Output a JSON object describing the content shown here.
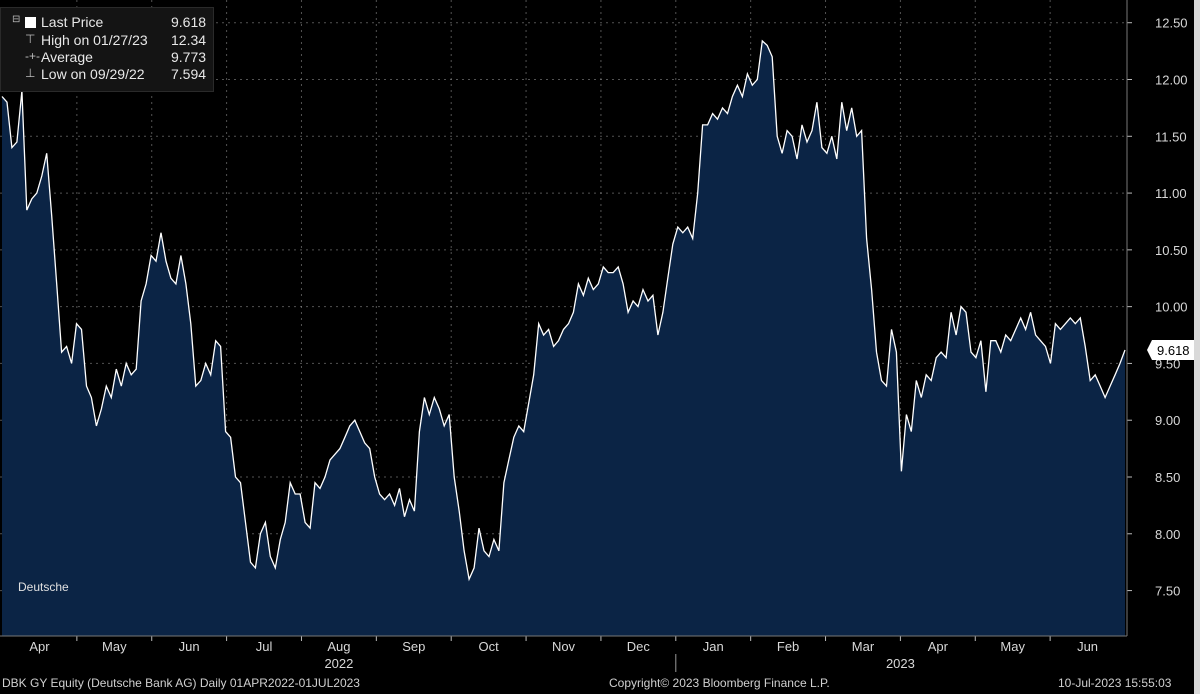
{
  "legend": {
    "rows": [
      {
        "label": "Last Price",
        "value": "9.618"
      },
      {
        "label": "High on 01/27/23",
        "value": "12.34"
      },
      {
        "label": "Average",
        "value": "9.773"
      },
      {
        "label": "Low on 09/29/22",
        "value": "7.594"
      }
    ]
  },
  "watermark": "Deutsche",
  "last_price_tag": "9.618",
  "footer": {
    "left": "DBK GY Equity (Deutsche Bank AG)  Daily 01APR2022-01JUL2023",
    "center": "Copyright© 2023 Bloomberg Finance L.P.",
    "right": "10-Jul-2023 15:55:03"
  },
  "colors": {
    "background": "#000000",
    "area_fill": "#0b2445",
    "line": "#ffffff"
  },
  "chart_data": {
    "type": "area",
    "series": [
      {
        "name": "Last Price",
        "values": [
          11.85,
          11.8,
          11.4,
          11.45,
          11.9,
          10.85,
          10.95,
          11.0,
          11.15,
          11.35,
          10.8,
          10.2,
          9.6,
          9.65,
          9.5,
          9.85,
          9.8,
          9.3,
          9.2,
          8.95,
          9.1,
          9.3,
          9.2,
          9.45,
          9.3,
          9.5,
          9.4,
          9.45,
          10.05,
          10.2,
          10.45,
          10.4,
          10.65,
          10.4,
          10.25,
          10.2,
          10.45,
          10.2,
          9.85,
          9.3,
          9.35,
          9.5,
          9.4,
          9.7,
          9.65,
          8.9,
          8.85,
          8.5,
          8.45,
          8.1,
          7.75,
          7.7,
          8.0,
          8.1,
          7.8,
          7.7,
          7.95,
          8.1,
          8.45,
          8.35,
          8.35,
          8.1,
          8.05,
          8.45,
          8.4,
          8.5,
          8.65,
          8.7,
          8.75,
          8.85,
          8.95,
          9.0,
          8.9,
          8.8,
          8.75,
          8.5,
          8.35,
          8.3,
          8.35,
          8.25,
          8.4,
          8.15,
          8.3,
          8.2,
          8.9,
          9.2,
          9.05,
          9.2,
          9.1,
          8.95,
          9.05,
          8.5,
          8.2,
          7.85,
          7.6,
          7.7,
          8.05,
          7.85,
          7.8,
          7.95,
          7.85,
          8.45,
          8.65,
          8.85,
          8.95,
          8.9,
          9.15,
          9.4,
          9.85,
          9.75,
          9.8,
          9.65,
          9.7,
          9.8,
          9.85,
          9.95,
          10.2,
          10.1,
          10.25,
          10.15,
          10.2,
          10.35,
          10.3,
          10.3,
          10.35,
          10.2,
          9.95,
          10.05,
          10.0,
          10.15,
          10.05,
          10.1,
          9.75,
          9.95,
          10.25,
          10.55,
          10.7,
          10.65,
          10.7,
          10.6,
          11.0,
          11.6,
          11.6,
          11.7,
          11.65,
          11.75,
          11.7,
          11.85,
          11.95,
          11.85,
          12.05,
          11.95,
          12.0,
          12.34,
          12.3,
          12.2,
          11.5,
          11.35,
          11.55,
          11.5,
          11.3,
          11.6,
          11.45,
          11.55,
          11.8,
          11.4,
          11.35,
          11.5,
          11.3,
          11.8,
          11.55,
          11.75,
          11.5,
          11.55,
          10.6,
          10.15,
          9.6,
          9.35,
          9.3,
          9.8,
          9.6,
          8.55,
          9.05,
          8.9,
          9.35,
          9.2,
          9.4,
          9.35,
          9.55,
          9.6,
          9.55,
          9.95,
          9.75,
          10.0,
          9.95,
          9.6,
          9.55,
          9.7,
          9.25,
          9.7,
          9.7,
          9.6,
          9.75,
          9.7,
          9.8,
          9.9,
          9.8,
          9.95,
          9.75,
          9.7,
          9.65,
          9.5,
          9.85,
          9.8,
          9.85,
          9.9,
          9.85,
          9.9,
          9.65,
          9.35,
          9.4,
          9.3,
          9.2,
          9.3,
          9.4,
          9.5,
          9.618
        ]
      }
    ],
    "x": {
      "start": "01APR2022",
      "end": "01JUL2023",
      "month_labels": [
        "Apr",
        "May",
        "Jun",
        "Jul",
        "Aug",
        "Sep",
        "Oct",
        "Nov",
        "Dec",
        "Jan",
        "Feb",
        "Mar",
        "Apr",
        "May",
        "Jun"
      ],
      "year_labels": [
        "2022",
        "2023"
      ]
    },
    "y": {
      "range": [
        7.1,
        12.7
      ],
      "ticks": [
        "7.50",
        "8.00",
        "8.50",
        "9.00",
        "9.50",
        "10.00",
        "10.50",
        "11.00",
        "11.50",
        "12.00",
        "12.50"
      ],
      "position": "right"
    },
    "grid": true,
    "legend_placement": "top-left"
  }
}
